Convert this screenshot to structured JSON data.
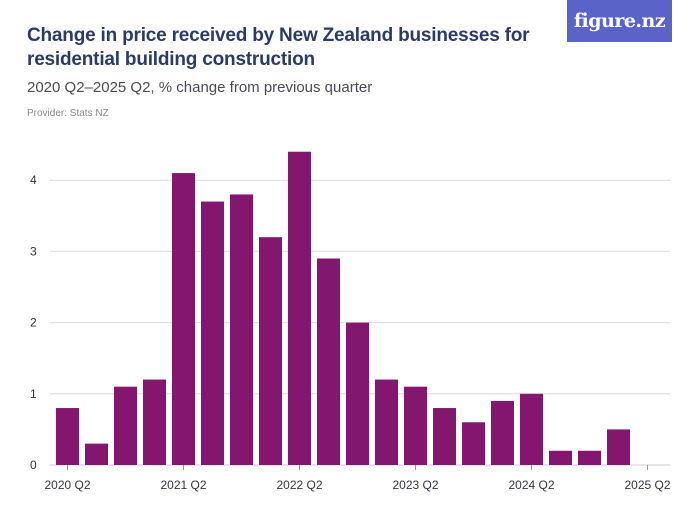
{
  "header": {
    "title": "Change in price received by New Zealand businesses for residential building construction",
    "subtitle": "2020 Q2–2025 Q2, % change from previous quarter",
    "provider": "Provider: Stats NZ",
    "logo_text": "figure.nz"
  },
  "colors": {
    "bar": "#85166f",
    "logo_bg": "#5a63c8",
    "title": "#2b3a67"
  },
  "chart_data": {
    "type": "bar",
    "categories": [
      "2020 Q2",
      "2020 Q3",
      "2020 Q4",
      "2021 Q1",
      "2021 Q2",
      "2021 Q3",
      "2021 Q4",
      "2022 Q1",
      "2022 Q2",
      "2022 Q3",
      "2022 Q4",
      "2023 Q1",
      "2023 Q2",
      "2023 Q3",
      "2023 Q4",
      "2024 Q1",
      "2024 Q2",
      "2024 Q3",
      "2024 Q4",
      "2025 Q1",
      "2025 Q2"
    ],
    "values": [
      0.8,
      0.3,
      1.1,
      1.2,
      4.1,
      3.7,
      3.8,
      3.2,
      4.4,
      2.9,
      2.0,
      1.2,
      1.1,
      0.8,
      0.6,
      0.9,
      1.0,
      0.2,
      0.2,
      0.5,
      null
    ],
    "x_tick_labels": [
      "2020 Q2",
      "2021 Q2",
      "2022 Q2",
      "2023 Q2",
      "2024 Q2",
      "2025 Q2"
    ],
    "y_ticks": [
      0,
      1,
      2,
      3,
      4
    ],
    "ylim": [
      0,
      4.6
    ],
    "grid": true
  }
}
